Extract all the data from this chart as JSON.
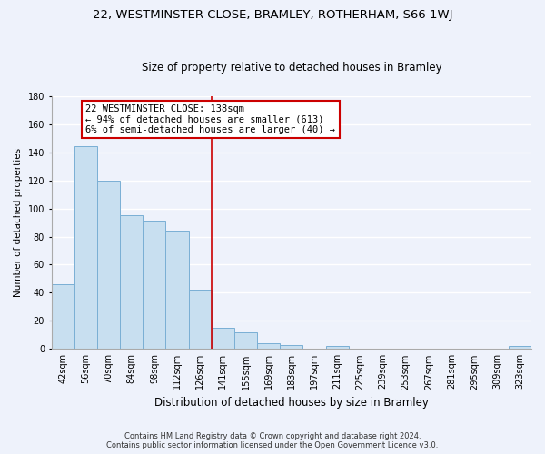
{
  "title": "22, WESTMINSTER CLOSE, BRAMLEY, ROTHERHAM, S66 1WJ",
  "subtitle": "Size of property relative to detached houses in Bramley",
  "xlabel": "Distribution of detached houses by size in Bramley",
  "ylabel": "Number of detached properties",
  "bar_labels": [
    "42sqm",
    "56sqm",
    "70sqm",
    "84sqm",
    "98sqm",
    "112sqm",
    "126sqm",
    "141sqm",
    "155sqm",
    "169sqm",
    "183sqm",
    "197sqm",
    "211sqm",
    "225sqm",
    "239sqm",
    "253sqm",
    "267sqm",
    "281sqm",
    "295sqm",
    "309sqm",
    "323sqm"
  ],
  "bar_heights": [
    46,
    144,
    120,
    95,
    91,
    84,
    42,
    15,
    12,
    4,
    3,
    0,
    2,
    0,
    0,
    0,
    0,
    0,
    0,
    0,
    2
  ],
  "bar_color": "#c8dff0",
  "bar_edge_color": "#7aafd4",
  "vline_x_index": 7,
  "vline_color": "#cc0000",
  "annotation_line1": "22 WESTMINSTER CLOSE: 138sqm",
  "annotation_line2": "← 94% of detached houses are smaller (613)",
  "annotation_line3": "6% of semi-detached houses are larger (40) →",
  "annotation_box_color": "#ffffff",
  "annotation_box_edge_color": "#cc0000",
  "ylim": [
    0,
    180
  ],
  "yticks": [
    0,
    20,
    40,
    60,
    80,
    100,
    120,
    140,
    160,
    180
  ],
  "footer_line1": "Contains HM Land Registry data © Crown copyright and database right 2024.",
  "footer_line2": "Contains public sector information licensed under the Open Government Licence v3.0.",
  "background_color": "#eef2fb",
  "grid_color": "#ffffff",
  "title_fontsize": 9.5,
  "subtitle_fontsize": 8.5,
  "xlabel_fontsize": 8.5,
  "ylabel_fontsize": 7.5,
  "tick_fontsize": 7,
  "annotation_fontsize": 7.5,
  "footer_fontsize": 6
}
